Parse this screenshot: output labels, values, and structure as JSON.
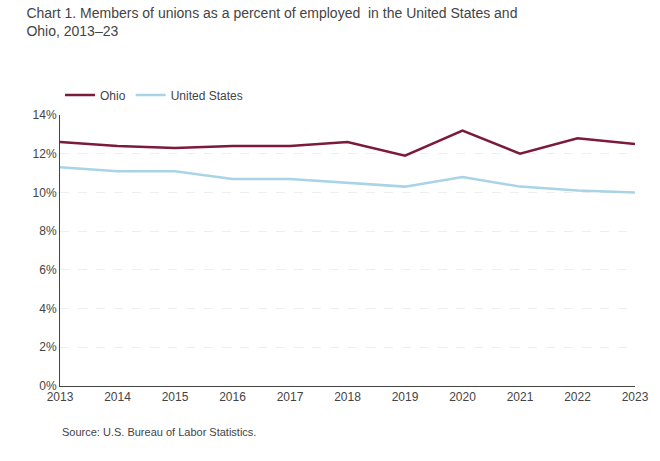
{
  "chart_data": {
    "type": "line",
    "title": "Chart 1. Members of unions as a percent of employed  in the United States and\nOhio, 2013–23",
    "x": [
      2013,
      2014,
      2015,
      2016,
      2017,
      2018,
      2019,
      2020,
      2021,
      2022,
      2023
    ],
    "series": [
      {
        "name": "Ohio",
        "color": "#7b1a3c",
        "values": [
          12.6,
          12.4,
          12.3,
          12.4,
          12.4,
          12.6,
          11.9,
          13.2,
          12.0,
          12.8,
          12.5
        ]
      },
      {
        "name": "United States",
        "color": "#a8d4e6",
        "values": [
          11.3,
          11.1,
          11.1,
          10.7,
          10.7,
          10.5,
          10.3,
          10.8,
          10.3,
          10.1,
          10.0
        ]
      }
    ],
    "xlim": [
      2013,
      2023
    ],
    "xticks": [
      2013,
      2014,
      2015,
      2016,
      2017,
      2018,
      2019,
      2020,
      2021,
      2022,
      2023
    ],
    "ylim": [
      0,
      14
    ],
    "yticks": [
      {
        "value": 0,
        "label": "0%"
      },
      {
        "value": 2,
        "label": "2%"
      },
      {
        "value": 4,
        "label": "4%"
      },
      {
        "value": 6,
        "label": "6%"
      },
      {
        "value": 8,
        "label": "8%"
      },
      {
        "value": 10,
        "label": "10%"
      },
      {
        "value": 12,
        "label": "12%"
      },
      {
        "value": 14,
        "label": "14%"
      }
    ],
    "grid": true,
    "legend": "top",
    "annotations": [
      "Source: U.S. Bureau of Labor Statistics."
    ]
  }
}
